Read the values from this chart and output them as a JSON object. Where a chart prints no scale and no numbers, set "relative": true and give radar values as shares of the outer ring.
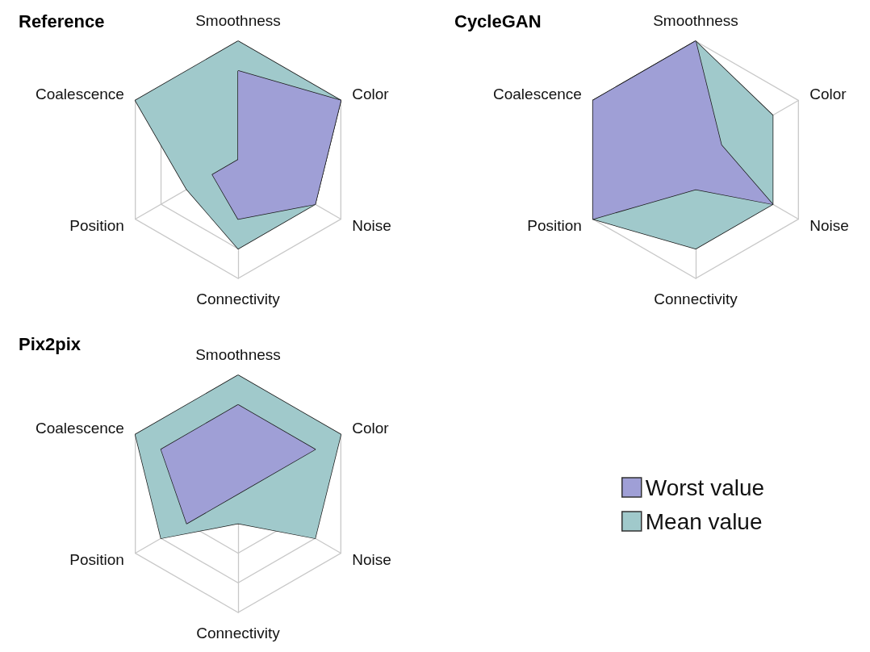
{
  "chart_data": [
    {
      "type": "radar",
      "title": "Reference",
      "categories": [
        "Smoothness",
        "Color",
        "Noise",
        "Connectivity",
        "Position",
        "Coalescence"
      ],
      "relative": true,
      "marker": "none",
      "series": [
        {
          "color": "#a0c9cb",
          "values": [
            1,
            1,
            0.75,
            0.75,
            0.5,
            1
          ]
        },
        {
          "color": "#9f9fd6",
          "values": [
            0.75,
            1,
            0.75,
            0.5,
            0.25,
            0
          ]
        }
      ]
    },
    {
      "type": "radar",
      "title": "CycleGAN",
      "categories": [
        "Smoothness",
        "Color",
        "Noise",
        "Connectivity",
        "Position",
        "Coalescence"
      ],
      "relative": true,
      "marker": "none",
      "series": [
        {
          "color": "#a0c9cb",
          "values": [
            1,
            0.75,
            0.75,
            0.75,
            1,
            1
          ]
        },
        {
          "color": "#9f9fd6",
          "values": [
            1,
            0.25,
            0.75,
            0.25,
            1,
            1
          ]
        }
      ]
    },
    {
      "type": "radar",
      "title": "Pix2pix",
      "categories": [
        "Smoothness",
        "Color",
        "Noise",
        "Connectivity",
        "Position",
        "Coalescence"
      ],
      "relative": true,
      "marker": "none",
      "legend": "right",
      "series": [
        {
          "name": "Mean value",
          "color": "#a0c9cb",
          "values": [
            1,
            1,
            0.75,
            0.25,
            0.75,
            1
          ]
        },
        {
          "name": "Worst value",
          "color": "#9f9fd6",
          "values": [
            0.75,
            0.75,
            0,
            0,
            0.5,
            0.75
          ]
        }
      ]
    }
  ]
}
